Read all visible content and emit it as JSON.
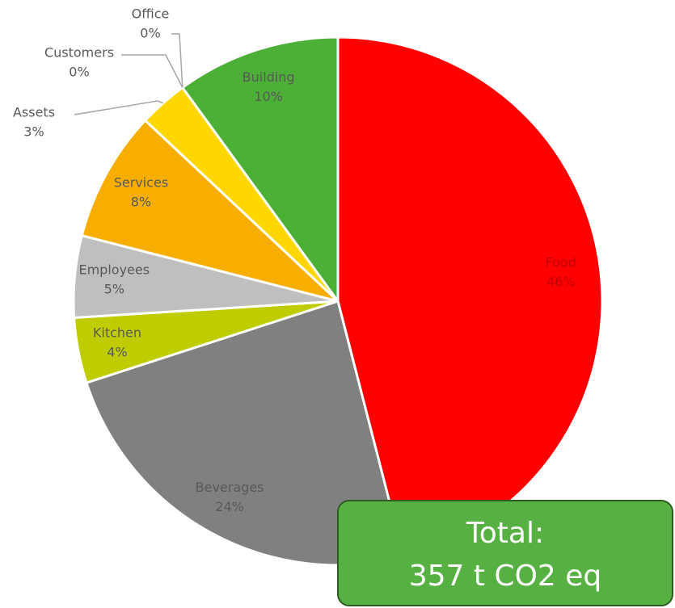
{
  "chart_data": {
    "type": "pie",
    "categories": [
      "Food",
      "Beverages",
      "Kitchen",
      "Employees",
      "Services",
      "Assets",
      "Customers",
      "Office",
      "Building"
    ],
    "values": [
      46,
      24,
      4,
      5,
      8,
      3,
      0,
      0,
      10
    ],
    "value_labels": [
      "46%",
      "24%",
      "4%",
      "5%",
      "8%",
      "3%",
      "0%",
      "0%",
      "10%"
    ],
    "colors": [
      "#ff0000",
      "#808080",
      "#bfcc00",
      "#bfbfbf",
      "#f8ae00",
      "#ffd700",
      "#a6a6a6",
      "#7f7f7f",
      "#4caf36"
    ],
    "annotation": [
      "Total:",
      "357 t CO2 eq"
    ]
  }
}
